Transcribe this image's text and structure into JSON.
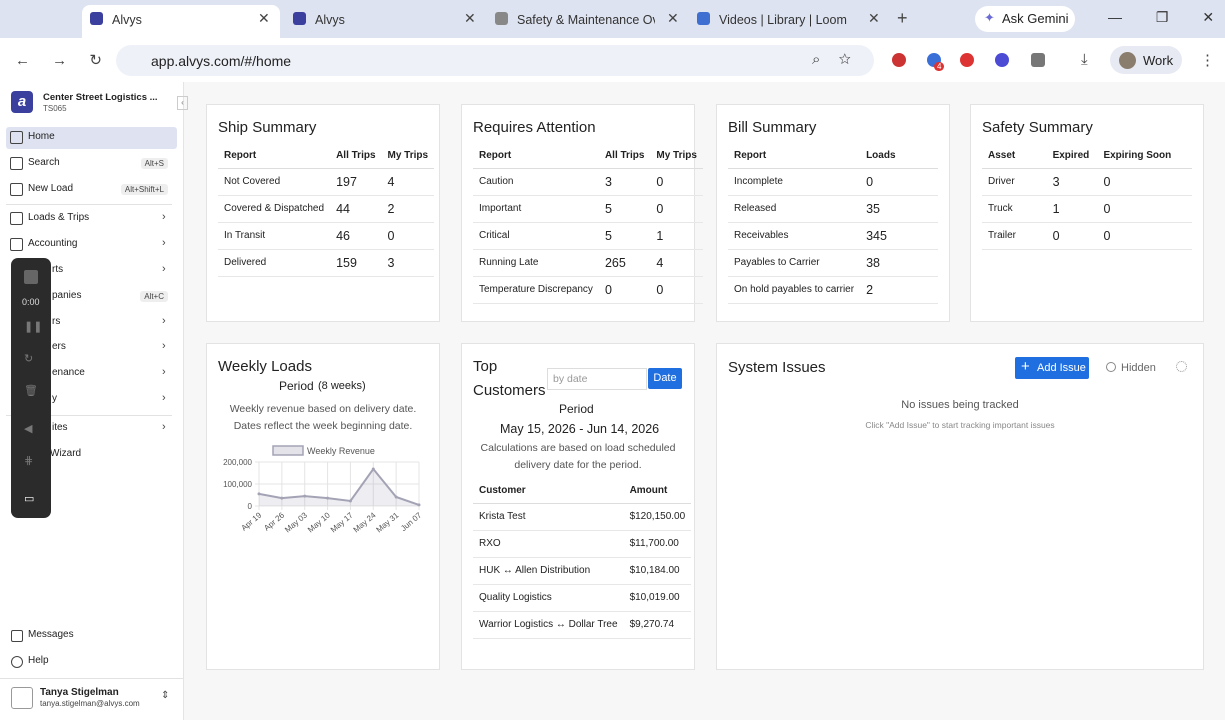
{
  "browser": {
    "tabs": [
      "Alvys",
      "Alvys",
      "Safety & Maintenance Ove",
      "Videos | Library | Loom"
    ],
    "ask_gemini": "Ask Gemini",
    "url": "app.alvys.com/#/home",
    "extension_badge": "4",
    "profile": "Work"
  },
  "sidebar": {
    "company": "Center Street Logistics ...",
    "company_code": "TS065",
    "nav": [
      {
        "label": "Home"
      },
      {
        "label": "Search",
        "shortcut": "Alt+S"
      },
      {
        "label": "New Load",
        "shortcut": "Alt+Shift+L"
      },
      {
        "label": "Loads & Trips"
      },
      {
        "label": "Accounting"
      },
      {
        "label": "rts"
      },
      {
        "label": "panies",
        "shortcut": "Alt+C"
      },
      {
        "label": "rs"
      },
      {
        "label": "ers"
      },
      {
        "label": "enance"
      },
      {
        "label": "y"
      },
      {
        "label": "ites"
      },
      {
        "label": "Wizard"
      }
    ],
    "footer_nav": [
      "Messages",
      "Help"
    ],
    "user": {
      "name": "Tanya Stigelman",
      "email": "tanya.stigelman@alvys.com"
    }
  },
  "recorder": {
    "time": "0:00"
  },
  "ship_summary": {
    "title": "Ship Summary",
    "columns": [
      "Report",
      "All Trips",
      "My Trips"
    ],
    "rows": [
      [
        "Not Covered",
        197,
        4
      ],
      [
        "Covered & Dispatched",
        44,
        2
      ],
      [
        "In Transit",
        46,
        0
      ],
      [
        "Delivered",
        159,
        3
      ]
    ]
  },
  "requires_attention": {
    "title": "Requires Attention",
    "columns": [
      "Report",
      "All Trips",
      "My Trips"
    ],
    "rows": [
      [
        "Caution",
        3,
        0
      ],
      [
        "Important",
        5,
        0
      ],
      [
        "Critical",
        5,
        1
      ],
      [
        "Running Late",
        265,
        4
      ],
      [
        "Temperature Discrepancy",
        0,
        0
      ]
    ]
  },
  "bill_summary": {
    "title": "Bill Summary",
    "columns": [
      "Report",
      "Loads"
    ],
    "rows": [
      [
        "Incomplete",
        0
      ],
      [
        "Released",
        35
      ],
      [
        "Receivables",
        345
      ],
      [
        "Payables to Carrier",
        38
      ],
      [
        "On hold payables to carrier",
        2
      ]
    ]
  },
  "safety_summary": {
    "title": "Safety Summary",
    "columns": [
      "Asset",
      "Expired",
      "Expiring Soon"
    ],
    "rows": [
      [
        "Driver",
        3,
        0
      ],
      [
        "Truck",
        1,
        0
      ],
      [
        "Trailer",
        0,
        0
      ]
    ]
  },
  "weekly_loads": {
    "title": "Weekly Loads",
    "period": "Period",
    "period_weeks": "(8 weeks)",
    "note": "Weekly revenue based on delivery date. Dates reflect the week beginning date."
  },
  "chart_data": {
    "type": "line",
    "categories": [
      "Apr 19",
      "Apr 26",
      "May 03",
      "May 10",
      "May 17",
      "May 24",
      "May 31",
      "Jun 07"
    ],
    "series": [
      {
        "name": "Weekly Revenue",
        "color": "#a3a3b5",
        "values": [
          55000,
          36000,
          45000,
          36000,
          23000,
          168000,
          41000,
          5000
        ]
      }
    ],
    "ylim": [
      0,
      200000
    ],
    "yticks": [
      0,
      {
        "value": 100000,
        "label": "100,000"
      },
      {
        "value": 200000,
        "label": "200,000"
      }
    ],
    "grid": true
  },
  "top_customers": {
    "title_line1": "Top",
    "title_line2": "Customers",
    "date_placeholder": "by date",
    "date_button": "Date",
    "period": "Period",
    "range": "May 15, 2026 - Jun 14, 2026",
    "note": "Calculations are based on load scheduled delivery date for the period.",
    "columns": [
      "Customer",
      "Amount"
    ],
    "rows": [
      [
        "Krista Test",
        "$120,150.00"
      ],
      [
        "RXO",
        "$11,700.00"
      ],
      [
        "HUK ↔ Allen Distribution",
        "$10,184.00"
      ],
      [
        "Quality Logistics",
        "$10,019.00"
      ],
      [
        "Warrior Logistics ↔ Dollar Tree",
        "$9,270.74"
      ]
    ]
  },
  "system_issues": {
    "title": "System Issues",
    "add_button": "Add Issue",
    "hidden": "Hidden",
    "empty": "No issues being tracked",
    "hint": "Click \"Add Issue\" to start tracking important issues"
  }
}
